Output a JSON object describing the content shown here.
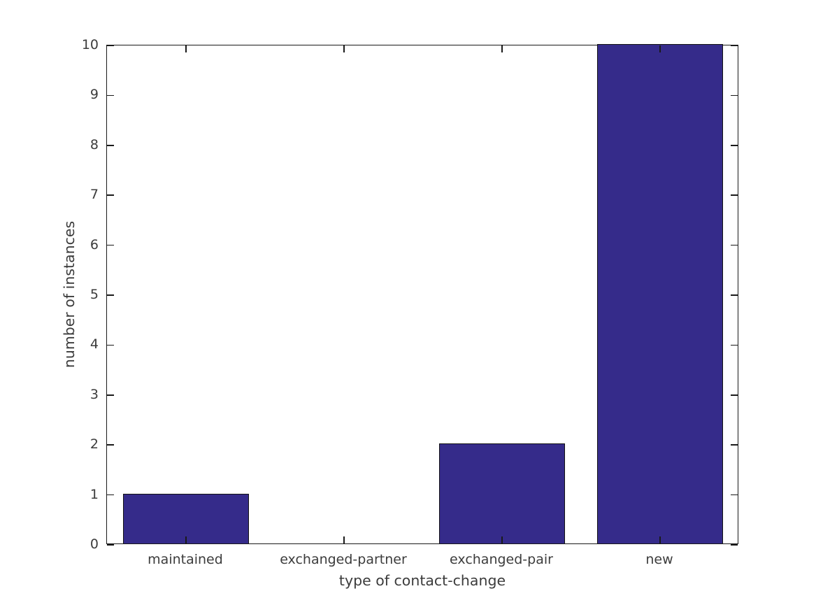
{
  "chart_data": {
    "type": "bar",
    "title": "",
    "xlabel": "type of contact-change",
    "ylabel": "number of instances",
    "categories": [
      "maintained",
      "exchanged-partner",
      "exchanged-pair",
      "new"
    ],
    "values": [
      1,
      0,
      2,
      10
    ],
    "yticks": [
      0,
      1,
      2,
      3,
      4,
      5,
      6,
      7,
      8,
      9,
      10
    ],
    "ylim": [
      0,
      10
    ],
    "grid": false,
    "legend": "none",
    "tick_style": "inward, mirrored on top and right borders",
    "colors": {
      "background": "#ffffff",
      "bar": "#352b8a",
      "bar_edge": "#121212",
      "axis": "#1a1a1a",
      "text": "#3c3c3c"
    }
  }
}
